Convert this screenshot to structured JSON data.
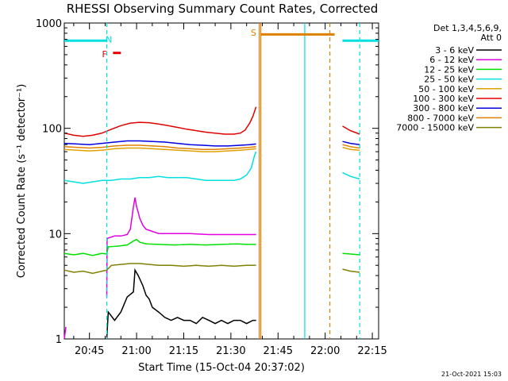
{
  "chart_data": {
    "type": "line",
    "title": "RHESSI Observing Summary Count Rates, Corrected",
    "ylabel": "Corrected Count Rate (s⁻¹ detector⁻¹)",
    "xlabel": "Start Time (15-Oct-04 20:37:02)",
    "y_scale": "log",
    "ylim": [
      1,
      1000
    ],
    "x_unit": "minutes after 20:37:02",
    "xlim": [
      0,
      100
    ],
    "x_ticks": [
      {
        "label": "20:45",
        "x": 8
      },
      {
        "label": "21:00",
        "x": 23
      },
      {
        "label": "21:15",
        "x": 38
      },
      {
        "label": "21:30",
        "x": 53
      },
      {
        "label": "21:45",
        "x": 68
      },
      {
        "label": "22:00",
        "x": 83
      },
      {
        "label": "22:15",
        "x": 98
      }
    ],
    "y_ticks": [
      {
        "label": "1",
        "y": 1
      },
      {
        "label": "10",
        "y": 10
      },
      {
        "label": "100",
        "y": 100
      },
      {
        "label": "1000",
        "y": 1000
      }
    ],
    "legend_header": [
      "Det 1,3,4,5,6,9,",
      "Att 0"
    ],
    "legend_position": "right",
    "series": [
      {
        "name": "3 - 6 keV",
        "color": "#000000",
        "segments": [
          [
            [
              13.5,
              1.0
            ],
            [
              14,
              1.8
            ],
            [
              16,
              1.5
            ],
            [
              18,
              1.8
            ],
            [
              20,
              2.5
            ],
            [
              22,
              2.8
            ],
            [
              22.5,
              4.5
            ],
            [
              23.5,
              4.0
            ],
            [
              25,
              3.2
            ],
            [
              26,
              2.6
            ],
            [
              27,
              2.4
            ],
            [
              28,
              2.0
            ],
            [
              30,
              1.8
            ],
            [
              32,
              1.6
            ],
            [
              34,
              1.5
            ],
            [
              36,
              1.6
            ],
            [
              38,
              1.5
            ],
            [
              40,
              1.5
            ],
            [
              42,
              1.4
            ],
            [
              44,
              1.6
            ],
            [
              46,
              1.5
            ],
            [
              48,
              1.4
            ],
            [
              50,
              1.5
            ],
            [
              52,
              1.4
            ],
            [
              54,
              1.5
            ],
            [
              56,
              1.5
            ],
            [
              58,
              1.4
            ],
            [
              60,
              1.5
            ],
            [
              61,
              1.5
            ]
          ]
        ]
      },
      {
        "name": "6 - 12 keV",
        "color": "#e000e0",
        "segments": [
          [
            [
              0,
              1.0
            ],
            [
              0.5,
              1.3
            ]
          ],
          [
            [
              13.5,
              2.5
            ],
            [
              13.6,
              9.0
            ],
            [
              16,
              9.5
            ],
            [
              18,
              9.5
            ],
            [
              20,
              9.8
            ],
            [
              21,
              11
            ],
            [
              22,
              18
            ],
            [
              22.5,
              22
            ],
            [
              23,
              18
            ],
            [
              23.5,
              16
            ],
            [
              24,
              14
            ],
            [
              25,
              12
            ],
            [
              26,
              11
            ],
            [
              28,
              10.5
            ],
            [
              30,
              10
            ],
            [
              34,
              10
            ],
            [
              40,
              10
            ],
            [
              46,
              9.8
            ],
            [
              52,
              9.8
            ],
            [
              58,
              9.8
            ],
            [
              61,
              9.8
            ]
          ]
        ]
      },
      {
        "name": "12 - 25 keV",
        "color": "#00e000",
        "segments": [
          [
            [
              0,
              6.5
            ],
            [
              3,
              6.3
            ],
            [
              6,
              6.5
            ],
            [
              9,
              6.2
            ],
            [
              12,
              6.5
            ],
            [
              13.5,
              6.4
            ],
            [
              14,
              7.5
            ],
            [
              17,
              7.6
            ],
            [
              20,
              7.8
            ],
            [
              22,
              8.5
            ],
            [
              23,
              8.8
            ],
            [
              24,
              8.3
            ],
            [
              26,
              8.0
            ],
            [
              30,
              7.9
            ],
            [
              35,
              7.8
            ],
            [
              40,
              7.9
            ],
            [
              45,
              7.8
            ],
            [
              50,
              7.9
            ],
            [
              55,
              8.0
            ],
            [
              58,
              7.9
            ],
            [
              61,
              7.9
            ]
          ],
          [
            [
              88.5,
              6.5
            ],
            [
              91,
              6.4
            ],
            [
              94,
              6.3
            ]
          ]
        ]
      },
      {
        "name": "25 - 50 keV",
        "color": "#00e0e0",
        "segments": [
          [
            [
              0,
              32
            ],
            [
              3,
              31
            ],
            [
              6,
              30
            ],
            [
              9,
              31
            ],
            [
              12,
              32
            ],
            [
              15,
              32
            ],
            [
              18,
              33
            ],
            [
              21,
              33
            ],
            [
              24,
              34
            ],
            [
              27,
              34
            ],
            [
              30,
              35
            ],
            [
              33,
              34
            ],
            [
              36,
              34
            ],
            [
              39,
              34
            ],
            [
              42,
              33
            ],
            [
              45,
              32
            ],
            [
              48,
              32
            ],
            [
              51,
              32
            ],
            [
              54,
              32
            ],
            [
              56,
              33
            ],
            [
              58,
              36
            ],
            [
              59.5,
              42
            ],
            [
              60.5,
              55
            ],
            [
              61,
              60
            ]
          ],
          [
            [
              88.5,
              38
            ],
            [
              91,
              35
            ],
            [
              94,
              33
            ]
          ]
        ]
      },
      {
        "name": "50 - 100 keV",
        "color": "#e0a000",
        "segments": [
          [
            [
              0,
              63
            ],
            [
              4,
              62
            ],
            [
              8,
              61
            ],
            [
              12,
              62
            ],
            [
              16,
              64
            ],
            [
              20,
              65
            ],
            [
              24,
              65
            ],
            [
              28,
              64
            ],
            [
              32,
              63
            ],
            [
              36,
              62
            ],
            [
              40,
              61
            ],
            [
              44,
              60
            ],
            [
              48,
              60
            ],
            [
              52,
              61
            ],
            [
              56,
              62
            ],
            [
              59,
              63
            ],
            [
              61,
              64
            ]
          ],
          [
            [
              88.5,
              66
            ],
            [
              91,
              63
            ],
            [
              94,
              62
            ]
          ]
        ]
      },
      {
        "name": "100 - 300 keV",
        "color": "#e00000",
        "segments": [
          [
            [
              0,
              90
            ],
            [
              3,
              86
            ],
            [
              6,
              84
            ],
            [
              9,
              86
            ],
            [
              12,
              90
            ],
            [
              15,
              98
            ],
            [
              18,
              106
            ],
            [
              21,
              112
            ],
            [
              24,
              114
            ],
            [
              27,
              113
            ],
            [
              30,
              110
            ],
            [
              33,
              106
            ],
            [
              36,
              102
            ],
            [
              39,
              98
            ],
            [
              42,
              95
            ],
            [
              45,
              92
            ],
            [
              48,
              90
            ],
            [
              51,
              88
            ],
            [
              54,
              88
            ],
            [
              56,
              90
            ],
            [
              57.5,
              96
            ],
            [
              59,
              112
            ],
            [
              60,
              130
            ],
            [
              61,
              160
            ]
          ],
          [
            [
              88.5,
              105
            ],
            [
              91,
              95
            ],
            [
              94,
              88
            ]
          ]
        ]
      },
      {
        "name": "300 - 800 keV",
        "color": "#0000e0",
        "segments": [
          [
            [
              0,
              72
            ],
            [
              4,
              71
            ],
            [
              8,
              70
            ],
            [
              12,
              72
            ],
            [
              16,
              74
            ],
            [
              20,
              76
            ],
            [
              24,
              76
            ],
            [
              28,
              75
            ],
            [
              32,
              74
            ],
            [
              36,
              72
            ],
            [
              40,
              70
            ],
            [
              44,
              69
            ],
            [
              48,
              68
            ],
            [
              52,
              68
            ],
            [
              56,
              69
            ],
            [
              59,
              70
            ],
            [
              61,
              71
            ]
          ],
          [
            [
              88.5,
              75
            ],
            [
              91,
              72
            ],
            [
              94,
              70
            ]
          ]
        ]
      },
      {
        "name": "800 - 7000 keV",
        "color": "#e08000",
        "segments": [
          [
            [
              0,
              67
            ],
            [
              4,
              66
            ],
            [
              8,
              65
            ],
            [
              12,
              66
            ],
            [
              16,
              68
            ],
            [
              20,
              69
            ],
            [
              24,
              69
            ],
            [
              28,
              68
            ],
            [
              32,
              67
            ],
            [
              36,
              65
            ],
            [
              40,
              64
            ],
            [
              44,
              63
            ],
            [
              48,
              63
            ],
            [
              52,
              64
            ],
            [
              56,
              65
            ],
            [
              59,
              66
            ],
            [
              61,
              67
            ]
          ],
          [
            [
              88.5,
              70
            ],
            [
              91,
              67
            ],
            [
              94,
              65
            ]
          ]
        ]
      },
      {
        "name": "7000 - 15000 keV",
        "color": "#808000",
        "segments": [
          [
            [
              0,
              4.5
            ],
            [
              3,
              4.3
            ],
            [
              6,
              4.4
            ],
            [
              9,
              4.2
            ],
            [
              12,
              4.4
            ],
            [
              13.5,
              4.5
            ],
            [
              15,
              5.0
            ],
            [
              18,
              5.1
            ],
            [
              21,
              5.2
            ],
            [
              24,
              5.2
            ],
            [
              27,
              5.1
            ],
            [
              30,
              5.0
            ],
            [
              34,
              5.0
            ],
            [
              38,
              4.9
            ],
            [
              42,
              5.0
            ],
            [
              46,
              4.9
            ],
            [
              50,
              5.0
            ],
            [
              54,
              4.9
            ],
            [
              58,
              5.0
            ],
            [
              61,
              5.0
            ]
          ],
          [
            [
              88.5,
              4.6
            ],
            [
              91,
              4.4
            ],
            [
              94,
              4.3
            ]
          ]
        ]
      }
    ],
    "vertical_markers": [
      {
        "x": 13.5,
        "color": "#00e0e0",
        "style": "dashed"
      },
      {
        "x": 62,
        "color": "#e08000",
        "style": "solid"
      },
      {
        "x": 62.5,
        "color": "#e08000",
        "style": "solid"
      },
      {
        "x": 76.5,
        "color": "#00e0e0",
        "style": "solid"
      },
      {
        "x": 84.5,
        "color": "#e08000",
        "style": "dashed"
      },
      {
        "x": 94,
        "color": "#00e0e0",
        "style": "dashed"
      }
    ],
    "flag_bars": [
      {
        "x0": 0,
        "x1": 13.5,
        "y": 680,
        "color": "#00e0e0"
      },
      {
        "x0": 88.5,
        "x1": 100,
        "y": 680,
        "color": "#00e0e0"
      },
      {
        "x0": 62.5,
        "x1": 86,
        "y": 780,
        "color": "#e08000"
      },
      {
        "x0": 15.5,
        "x1": 18,
        "y": 520,
        "color": "#e00000"
      }
    ],
    "flag_labels": [
      {
        "text": "N",
        "x": 14.2,
        "y": 700,
        "color": "#00e0e0"
      },
      {
        "text": "F",
        "x": 12.8,
        "y": 510,
        "color": "#e00000"
      },
      {
        "text": "S",
        "x": 60.2,
        "y": 810,
        "color": "#e08000"
      }
    ]
  },
  "footer_date": "21-Oct-2021 15:03"
}
